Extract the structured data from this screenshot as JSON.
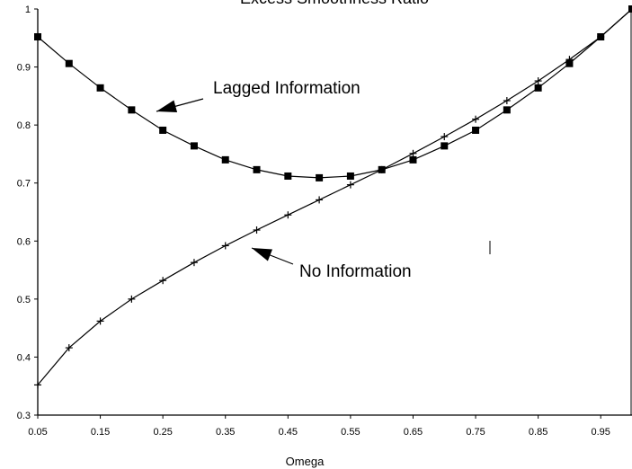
{
  "chart_data": {
    "type": "line",
    "title": "Excess Smoothness Ratio",
    "xlabel": "Omega",
    "ylabel": "",
    "x": [
      0.05,
      0.1,
      0.15,
      0.2,
      0.25,
      0.3,
      0.35,
      0.4,
      0.45,
      0.5,
      0.55,
      0.6,
      0.65,
      0.7,
      0.75,
      0.8,
      0.85,
      0.9,
      0.95,
      1.0
    ],
    "xticks": [
      "0.05",
      "0.15",
      "0.25",
      "0.35",
      "0.45",
      "0.55",
      "0.65",
      "0.75",
      "0.85",
      "0.95"
    ],
    "yticks": [
      "0.3",
      "0.4",
      "0.5",
      "0.6",
      "0.7",
      "0.8",
      "0.9",
      "1"
    ],
    "xlim": [
      0.05,
      1.0
    ],
    "ylim": [
      0.3,
      1.0
    ],
    "grid": false,
    "series": [
      {
        "name": "Lagged Information",
        "marker": "square",
        "color": "#000000",
        "values": [
          0.952,
          0.906,
          0.864,
          0.826,
          0.791,
          0.764,
          0.74,
          0.723,
          0.712,
          0.709,
          0.712,
          0.723,
          0.74,
          0.764,
          0.791,
          0.826,
          0.864,
          0.906,
          0.952,
          1.0
        ]
      },
      {
        "name": "No Information",
        "marker": "plus",
        "color": "#000000",
        "values": [
          0.352,
          0.416,
          0.462,
          0.5,
          0.532,
          0.563,
          0.592,
          0.619,
          0.645,
          0.671,
          0.697,
          0.723,
          0.751,
          0.78,
          0.81,
          0.842,
          0.876,
          0.913,
          0.952,
          1.0
        ]
      }
    ],
    "annotations": [
      {
        "text": "Lagged Information",
        "series": "Lagged Information"
      },
      {
        "text": "No Information",
        "series": "No Information"
      }
    ]
  }
}
